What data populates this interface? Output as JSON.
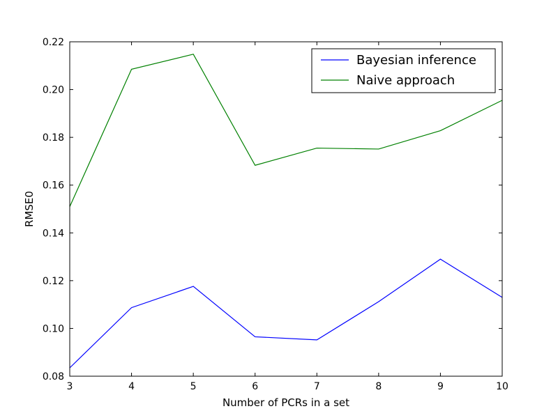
{
  "chart_data": {
    "type": "line",
    "title": "",
    "xlabel": "Number of PCRs in a set",
    "ylabel": "RMSE0",
    "xlim": [
      3,
      10
    ],
    "ylim": [
      0.08,
      0.22
    ],
    "x": [
      3,
      4,
      5,
      6,
      7,
      8,
      9,
      10
    ],
    "xticks": [
      "3",
      "4",
      "5",
      "6",
      "7",
      "8",
      "9",
      "10"
    ],
    "yticks": [
      "0.08",
      "0.10",
      "0.12",
      "0.14",
      "0.16",
      "0.18",
      "0.20",
      "0.22"
    ],
    "grid": false,
    "legend_position": "top-right",
    "series": [
      {
        "name": "Bayesian inference",
        "color": "#0000ff",
        "values": [
          0.0835,
          0.1087,
          0.1176,
          0.0965,
          0.0952,
          0.1112,
          0.129,
          0.113
        ]
      },
      {
        "name": "Naive approach",
        "color": "#008000",
        "values": [
          0.151,
          0.2085,
          0.2148,
          0.1683,
          0.1755,
          0.1751,
          0.1828,
          0.1955
        ]
      }
    ]
  }
}
